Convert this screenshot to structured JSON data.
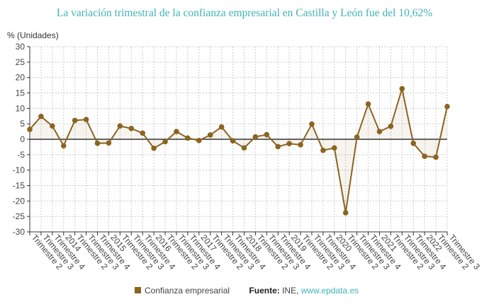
{
  "chart_data": {
    "type": "line",
    "title": "La variación trimestral de la confianza empresarial en Castilla y León fue del 10,62%",
    "ylabel": "% (Unidades)",
    "ylim": [
      -30,
      30
    ],
    "yticks": [
      30,
      25,
      20,
      15,
      10,
      5,
      0,
      -5,
      -10,
      -15,
      -20,
      -25,
      -30
    ],
    "grid": true,
    "legend_placement": "bottom",
    "categories": [
      "Trimestre 2",
      "Trimestre 3",
      "Trimestre 4",
      "2014",
      "Trimestre 2",
      "Trimestre 3",
      "Trimestre 4",
      "2015",
      "Trimestre 2",
      "Trimestre 3",
      "Trimestre 4",
      "2016",
      "Trimestre 2",
      "Trimestre 3",
      "Trimestre 4",
      "2017",
      "Trimestre 2",
      "Trimestre 3",
      "Trimestre 4",
      "2018",
      "Trimestre 2",
      "Trimestre 3",
      "Trimestre 4",
      "2019",
      "Trimestre 2",
      "Trimestre 3",
      "Trimestre 4",
      "2020",
      "Trimestre 2",
      "Trimestre 3",
      "Trimestre 4",
      "2021",
      "Trimestre 2",
      "Trimestre 3",
      "Trimestre 4",
      "2022",
      "Trimestre 2",
      "Trimestre 3"
    ],
    "series": [
      {
        "name": "Confianza empresarial",
        "color": "#8b6420",
        "values": [
          3.2,
          7.4,
          4.3,
          -2.1,
          6.1,
          6.4,
          -1.3,
          -1.2,
          4.3,
          3.5,
          2.0,
          -2.9,
          -0.8,
          2.5,
          0.4,
          -0.4,
          1.4,
          4.0,
          -0.5,
          -2.8,
          0.8,
          1.5,
          -2.4,
          -1.4,
          -1.8,
          4.9,
          -3.6,
          -2.8,
          -23.8,
          0.7,
          11.4,
          2.5,
          4.2,
          16.4,
          -1.3,
          -5.5,
          -5.8,
          10.62
        ]
      }
    ]
  },
  "source": {
    "label": "Fuente:",
    "text": " INE, ",
    "link": "www.epdata.es"
  },
  "colors": {
    "title": "#3fb3b8",
    "series": "#8b6420"
  }
}
